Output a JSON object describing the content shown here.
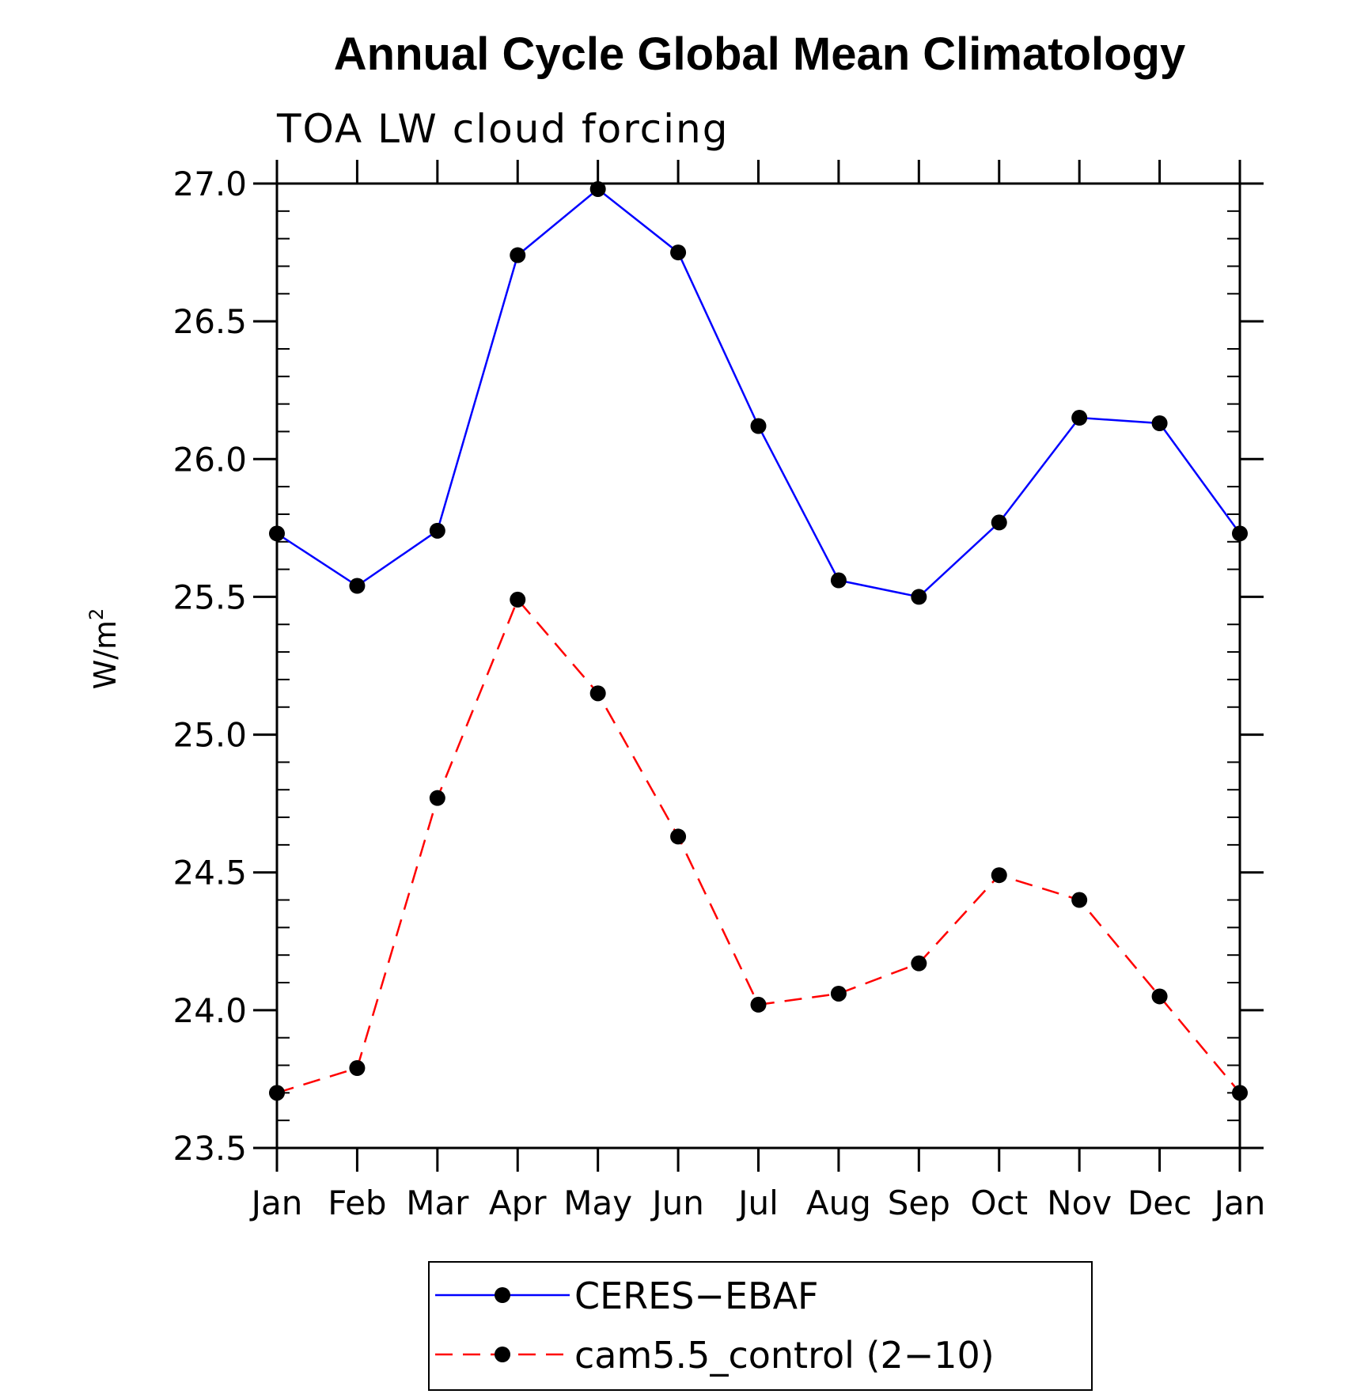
{
  "chart_data": {
    "type": "line",
    "title": "Annual Cycle Global Mean Climatology",
    "subtitle": "TOA LW cloud forcing",
    "ylabel": "W/m",
    "ylabel_superscript": "2",
    "xlabel": "",
    "categories": [
      "Jan",
      "Feb",
      "Mar",
      "Apr",
      "May",
      "Jun",
      "Jul",
      "Aug",
      "Sep",
      "Oct",
      "Nov",
      "Dec",
      "Jan"
    ],
    "ylim": [
      23.5,
      27.0
    ],
    "yticks": [
      "27.0",
      "26.5",
      "26.0",
      "25.5",
      "25.0",
      "24.5",
      "24.0",
      "23.5"
    ],
    "series": [
      {
        "name": "CERES−EBAF",
        "color": "#0000ff",
        "dash": "solid",
        "marker": "circle",
        "values": [
          25.73,
          25.54,
          25.74,
          26.74,
          26.98,
          26.75,
          26.12,
          25.56,
          25.5,
          25.77,
          26.15,
          26.13,
          25.73
        ]
      },
      {
        "name": "cam5.5_control (2−10)",
        "color": "#ff0000",
        "dash": "dashed",
        "marker": "circle",
        "values": [
          23.7,
          23.79,
          24.77,
          25.49,
          25.15,
          24.63,
          24.02,
          24.06,
          24.17,
          24.49,
          24.4,
          24.05,
          23.7
        ]
      }
    ],
    "marker_color": "#000000",
    "legend_placement": "bottom-center",
    "grid": false
  }
}
